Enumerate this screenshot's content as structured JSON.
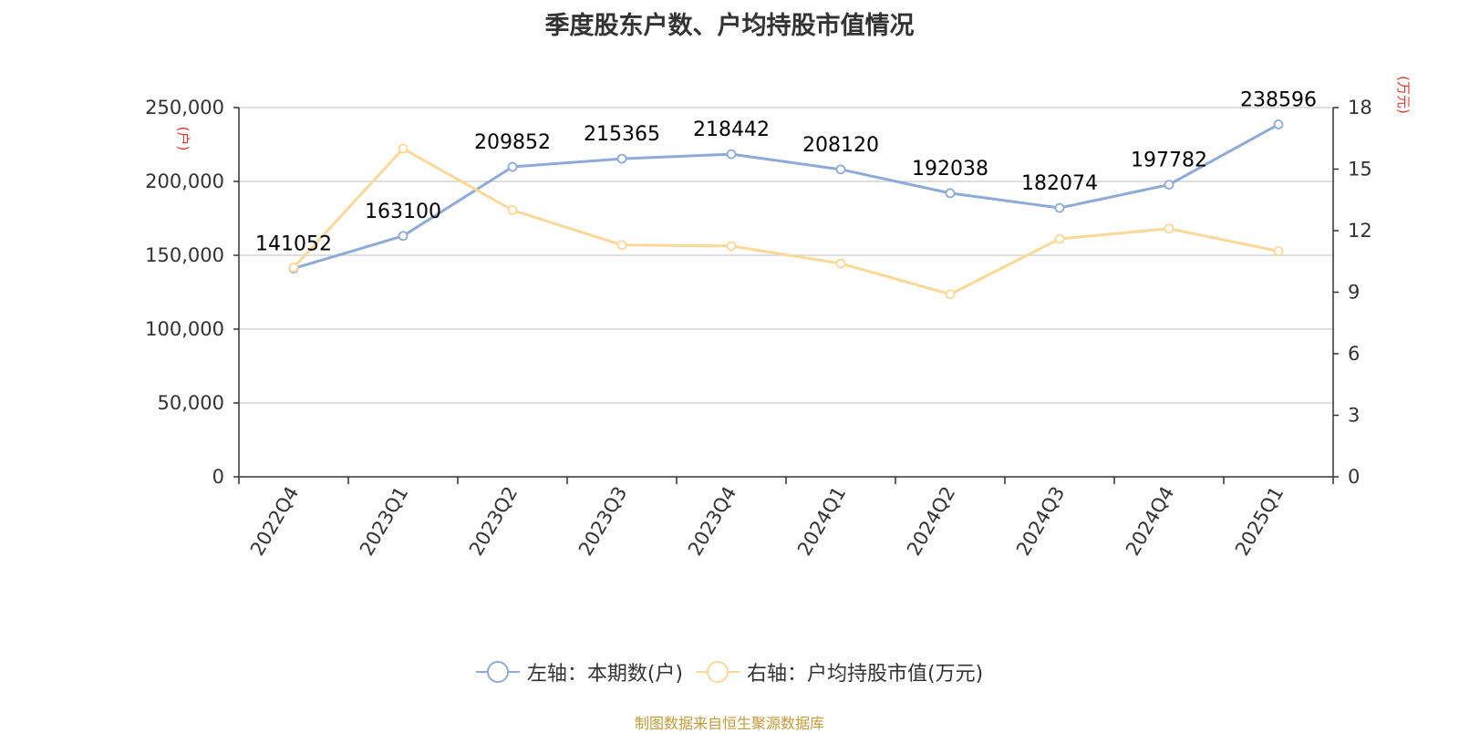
{
  "chart_data": {
    "type": "line",
    "title": "季度股东户数、户均持股市值情况",
    "categories": [
      "2022Q4",
      "2023Q1",
      "2023Q2",
      "2023Q3",
      "2023Q4",
      "2024Q1",
      "2024Q2",
      "2024Q3",
      "2024Q4",
      "2025Q1"
    ],
    "left_axis": {
      "unit": "(户)",
      "ylim": [
        0,
        250000
      ],
      "ticks": [
        0,
        50000,
        100000,
        150000,
        200000,
        250000
      ],
      "tick_labels": [
        "0",
        "50,000",
        "100,000",
        "150,000",
        "200,000",
        "250,000"
      ]
    },
    "right_axis": {
      "unit": "(万元)",
      "ylim": [
        0,
        18
      ],
      "ticks": [
        0,
        3,
        6,
        9,
        12,
        15,
        18
      ],
      "tick_labels": [
        "0",
        "3",
        "6",
        "9",
        "12",
        "15",
        "18"
      ]
    },
    "series": [
      {
        "name": "左轴：本期数(户)",
        "axis": "left",
        "color": "#8eaad8",
        "values": [
          141052,
          163100,
          209852,
          215365,
          218442,
          208120,
          192038,
          182074,
          197782,
          238596
        ],
        "data_labels": [
          "141052",
          "163100",
          "209852",
          "215365",
          "218442",
          "208120",
          "192038",
          "182074",
          "197782",
          "238596"
        ]
      },
      {
        "name": "右轴：户均持股市值(万元)",
        "axis": "right",
        "color": "#fcd898",
        "values": [
          10.2,
          16.0,
          13.0,
          11.3,
          11.25,
          10.4,
          8.9,
          11.6,
          12.1,
          11.0
        ]
      }
    ],
    "grid": true,
    "legend_position": "bottom"
  },
  "source_text": "制图数据来自恒生聚源数据库"
}
